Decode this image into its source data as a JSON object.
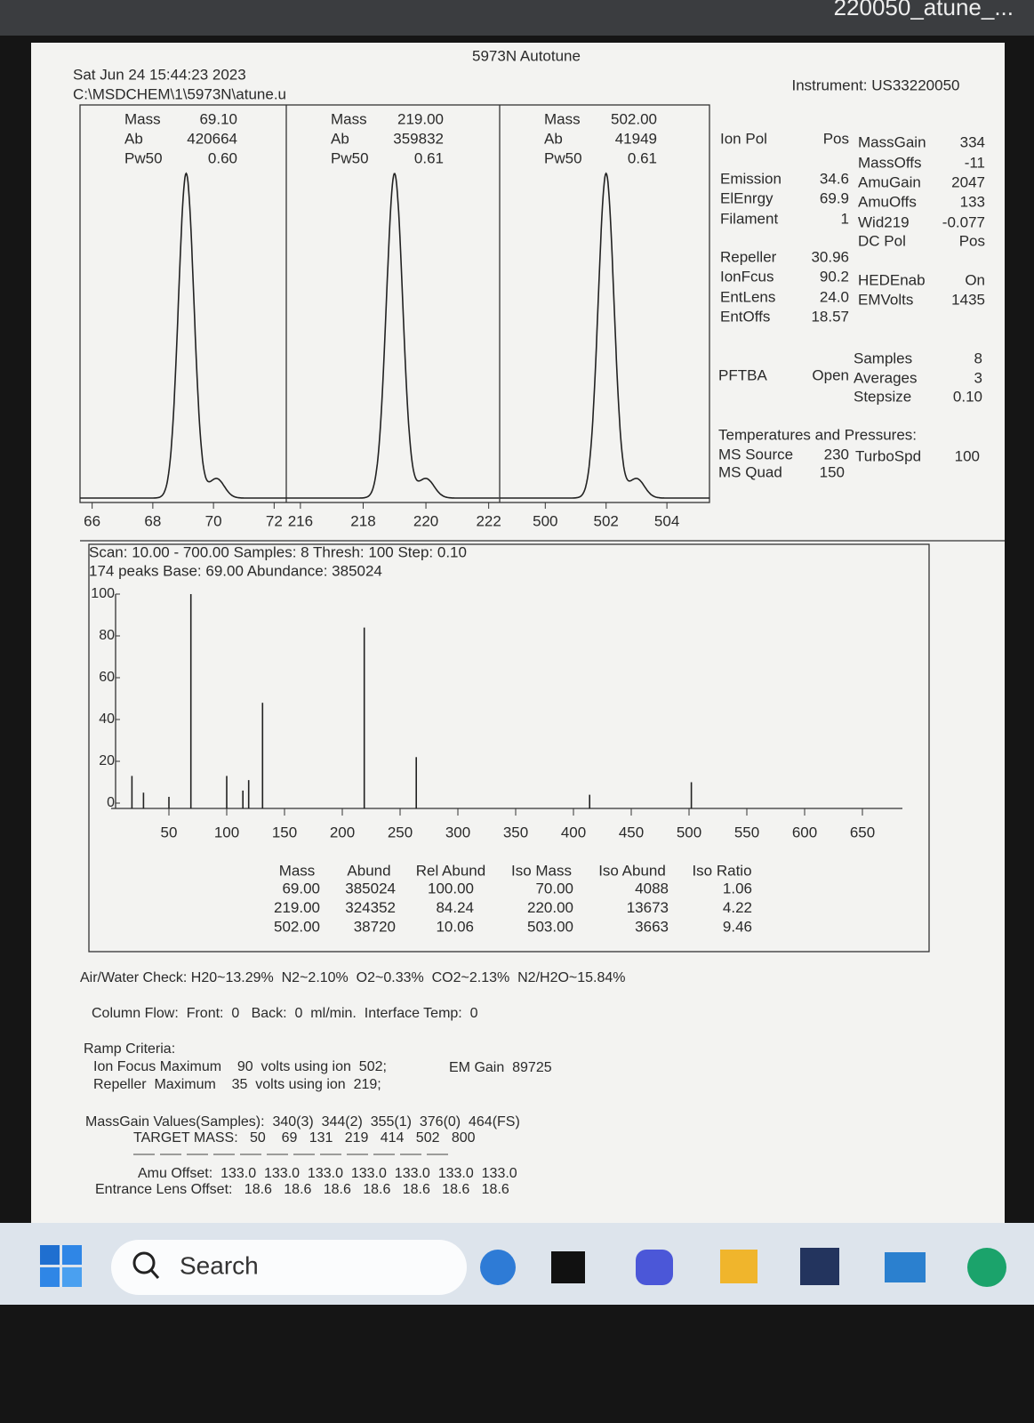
{
  "window": {
    "url_fragment": "220050_atune_..."
  },
  "header": {
    "title": "5973N Autotune",
    "date": "Sat Jun 24 15:44:23 2023",
    "path": "C:\\MSDCHEM\\1\\5973N\\atune.u",
    "instrument": "Instrument: US33220050"
  },
  "peak_labels": {
    "mass": "Mass",
    "ab": "Ab",
    "pw50": "Pw50"
  },
  "peaks": [
    {
      "mass": 69.1,
      "mass_label": "69.10",
      "ab": "420664",
      "pw50": 0.6,
      "pw50_label": "0.60",
      "xlim": [
        65.6,
        72.4
      ],
      "xticks": [
        66,
        68,
        70,
        72
      ]
    },
    {
      "mass": 219.0,
      "mass_label": "219.00",
      "ab": "359832",
      "pw50": 0.61,
      "pw50_label": "0.61",
      "xlim": [
        215.55,
        222.35
      ],
      "xticks": [
        216,
        218,
        220,
        222
      ]
    },
    {
      "mass": 502.0,
      "mass_label": "502.00",
      "ab": "41949",
      "pw50": 0.61,
      "pw50_label": "0.61",
      "xlim": [
        498.5,
        505.4
      ],
      "xticks": [
        500,
        502,
        504
      ]
    }
  ],
  "parameters": [
    {
      "label": "Ion Pol",
      "value": "Pos"
    },
    {
      "label": "MassGain",
      "value": "334"
    },
    {
      "label": "MassOffs",
      "value": "-11"
    },
    {
      "label": "Emission",
      "value": "34.6"
    },
    {
      "label": "AmuGain",
      "value": "2047"
    },
    {
      "label": "ElEnrgy",
      "value": "69.9"
    },
    {
      "label": "AmuOffs",
      "value": "133"
    },
    {
      "label": "Filament",
      "value": "1"
    },
    {
      "label": "Wid219",
      "value": "-0.077"
    },
    {
      "label": "DC Pol",
      "value": "Pos"
    },
    {
      "label": "Repeller",
      "value": "30.96"
    },
    {
      "label": "IonFcus",
      "value": "90.2"
    },
    {
      "label": "HEDEnab",
      "value": "On"
    },
    {
      "label": "EntLens",
      "value": "24.0"
    },
    {
      "label": "EMVolts",
      "value": "1435"
    },
    {
      "label": "EntOffs",
      "value": "18.57"
    },
    {
      "label": "PFTBA",
      "value": "Open"
    },
    {
      "label": "Samples",
      "value": "8"
    },
    {
      "label": "Averages",
      "value": "3"
    },
    {
      "label": "Stepsize",
      "value": "0.10"
    },
    {
      "label": "MS Source",
      "value": "230"
    },
    {
      "label": "TurboSpd",
      "value": "100"
    },
    {
      "label": "MS Quad",
      "value": "150"
    }
  ],
  "temperatures_heading": "Temperatures and Pressures:",
  "spectrum": {
    "type": "bar",
    "scan": "Scan: 10.00 - 700.00 Samples: 8 Thresh: 100 Step: 0.10",
    "summary": "174 peaks Base: 69.00 Abundance: 385024",
    "x": [
      18,
      28,
      50,
      69,
      100,
      114,
      119,
      131,
      219,
      264,
      414,
      502
    ],
    "values": [
      13,
      5,
      3,
      100,
      13,
      6,
      11,
      48,
      84,
      22,
      4,
      10
    ],
    "xlim": [
      0,
      700
    ],
    "ylim": [
      0,
      100
    ],
    "xticks": [
      50,
      100,
      150,
      200,
      250,
      300,
      350,
      400,
      450,
      500,
      550,
      600,
      650
    ],
    "yticks": [
      0,
      20,
      40,
      60,
      80,
      100
    ]
  },
  "table": {
    "columns": [
      "Mass",
      "Abund",
      "Rel Abund",
      "Iso Mass",
      "Iso Abund",
      "Iso Ratio"
    ],
    "rows": [
      [
        "69.00",
        "385024",
        "100.00",
        "70.00",
        "4088",
        "1.06"
      ],
      [
        "219.00",
        "324352",
        "84.24",
        "220.00",
        "13673",
        "4.22"
      ],
      [
        "502.00",
        "38720",
        "10.06",
        "503.00",
        "3663",
        "9.46"
      ]
    ]
  },
  "footer": {
    "air_water": "Air/Water Check: H20~13.29%  N2~2.10%  O2~0.33%  CO2~2.13%  N2/H2O~15.84%",
    "column_flow": "Column Flow:  Front:  0   Back:  0  ml/min.  Interface Temp:  0",
    "ramp_heading": "Ramp Criteria:",
    "ramp_1": "Ion Focus Maximum    90  volts using ion  502;",
    "em_gain": "EM Gain  89725",
    "ramp_2": "Repeller  Maximum    35  volts using ion  219;",
    "massgain": "MassGain Values(Samples):  340(3)  344(2)  355(1)  376(0)  464(FS)",
    "target": "TARGET MASS:   50    69   131   219   414   502   800",
    "amu": "Amu Offset:  133.0  133.0  133.0  133.0  133.0  133.0  133.0",
    "entrance": "Entrance Lens Offset:   18.6   18.6   18.6   18.6   18.6   18.6   18.6"
  },
  "taskbar": {
    "search": "Search"
  }
}
